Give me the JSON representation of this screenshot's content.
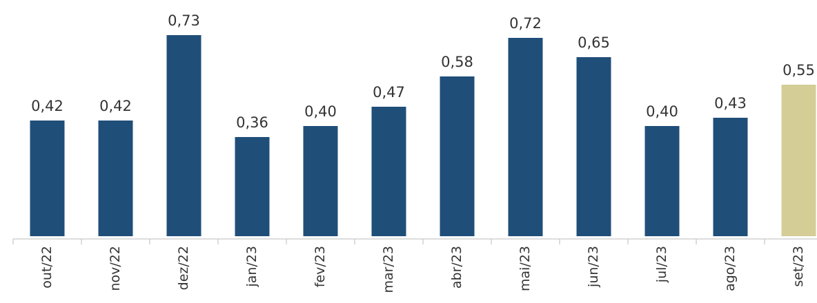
{
  "chart_data": {
    "type": "bar",
    "categories": [
      "out/22",
      "nov/22",
      "dez/22",
      "jan/23",
      "fev/23",
      "mar/23",
      "abr/23",
      "mai/23",
      "jun/23",
      "jul/23",
      "ago/23",
      "set/23"
    ],
    "values": [
      0.42,
      0.42,
      0.73,
      0.36,
      0.4,
      0.47,
      0.58,
      0.72,
      0.65,
      0.4,
      0.43,
      0.55
    ],
    "value_labels": [
      "0,42",
      "0,42",
      "0,73",
      "0,36",
      "0,40",
      "0,47",
      "0,58",
      "0,72",
      "0,65",
      "0,40",
      "0,43",
      "0,55"
    ],
    "colors": [
      "#1f4e79",
      "#1f4e79",
      "#1f4e79",
      "#1f4e79",
      "#1f4e79",
      "#1f4e79",
      "#1f4e79",
      "#1f4e79",
      "#1f4e79",
      "#1f4e79",
      "#1f4e79",
      "#d4cd96"
    ],
    "ylim": [
      0,
      0.8
    ]
  }
}
